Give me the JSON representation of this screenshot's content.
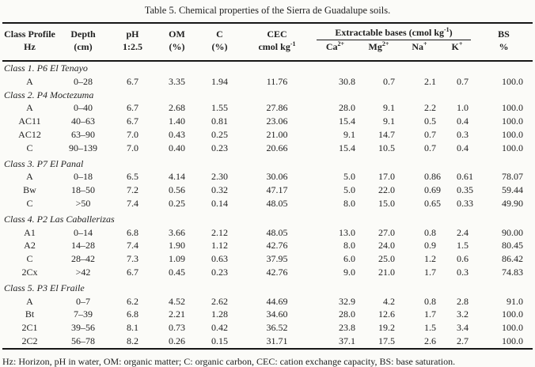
{
  "title": "Table 5. Chemical properties of the Sierra de Guadalupe soils.",
  "header": {
    "class_profile": {
      "l1": "Class Profile",
      "l2": "Hz"
    },
    "depth": {
      "l1": "Depth",
      "l2": "(cm)"
    },
    "ph": {
      "l1": "pH",
      "l2": "1:2.5"
    },
    "om": {
      "l1": "OM",
      "l2": "(%)"
    },
    "c": {
      "l1": "C",
      "l2": "(%)"
    },
    "cec": {
      "l1": "CEC",
      "unit_base": "cmol kg",
      "unit_sup": "-1"
    },
    "bases": {
      "label_pre": "Extractable bases (cmol kg",
      "label_sup": "-1",
      "label_post": ")"
    },
    "ions": [
      {
        "base": "Ca",
        "sup": "2+"
      },
      {
        "base": "Mg",
        "sup": "2+"
      },
      {
        "base": "Na",
        "sup": "+"
      },
      {
        "base": "K",
        "sup": "+"
      }
    ],
    "bs": {
      "l1": "BS",
      "l2": "%"
    }
  },
  "groups": [
    {
      "label": "Class 1. P6 El Tenayo",
      "rows": [
        [
          "A",
          "0–28",
          "6.7",
          "3.35",
          "1.94",
          "11.76",
          "30.8",
          "0.7",
          "2.1",
          "0.7",
          "100.0"
        ]
      ]
    },
    {
      "label": "Class 2. P4 Moctezuma",
      "rows": [
        [
          "A",
          "0–40",
          "6.7",
          "2.68",
          "1.55",
          "27.86",
          "28.0",
          "9.1",
          "2.2",
          "1.0",
          "100.0"
        ],
        [
          "AC11",
          "40–63",
          "6.7",
          "1.40",
          "0.81",
          "23.06",
          "15.4",
          "9.1",
          "0.5",
          "0.4",
          "100.0"
        ],
        [
          "AC12",
          "63–90",
          "7.0",
          "0.43",
          "0.25",
          "21.00",
          "9.1",
          "14.7",
          "0.7",
          "0.3",
          "100.0"
        ],
        [
          "C",
          "90–139",
          "7.0",
          "0.40",
          "0.23",
          "20.66",
          "15.4",
          "10.5",
          "0.7",
          "0.4",
          "100.0"
        ]
      ]
    },
    {
      "label": "Class 3. P7 El Panal",
      "rows": [
        [
          "A",
          "0–18",
          "6.5",
          "4.14",
          "2.30",
          "30.06",
          "5.0",
          "17.0",
          "0.86",
          "0.61",
          "78.07"
        ],
        [
          "Bw",
          "18–50",
          "7.2",
          "0.56",
          "0.32",
          "47.17",
          "5.0",
          "22.0",
          "0.69",
          "0.35",
          "59.44"
        ],
        [
          "C",
          ">50",
          "7.4",
          "0.25",
          "0.14",
          "48.05",
          "8.0",
          "15.0",
          "0.65",
          "0.33",
          "49.90"
        ]
      ]
    },
    {
      "label": "Class 4. P2 Las Caballerizas",
      "rows": [
        [
          "A1",
          "0–14",
          "6.8",
          "3.66",
          "2.12",
          "48.05",
          "13.0",
          "27.0",
          "0.8",
          "2.4",
          "90.00"
        ],
        [
          "A2",
          "14–28",
          "7.4",
          "1.90",
          "1.12",
          "42.76",
          "8.0",
          "24.0",
          "0.9",
          "1.5",
          "80.45"
        ],
        [
          "C",
          "28–42",
          "7.3",
          "1.09",
          "0.63",
          "37.95",
          "6.0",
          "25.0",
          "1.2",
          "0.6",
          "86.42"
        ],
        [
          "2Cx",
          ">42",
          "6.7",
          "0.45",
          "0.23",
          "42.76",
          "9.0",
          "21.0",
          "1.7",
          "0.3",
          "74.83"
        ]
      ]
    },
    {
      "label": "Class 5. P3 El Fraile",
      "rows": [
        [
          "A",
          "0–7",
          "6.2",
          "4.52",
          "2.62",
          "44.69",
          "32.9",
          "4.2",
          "0.8",
          "2.8",
          "91.0"
        ],
        [
          "Bt",
          "7–39",
          "6.8",
          "2.21",
          "1.28",
          "34.60",
          "28.0",
          "12.6",
          "1.7",
          "3.2",
          "100.0"
        ],
        [
          "2C1",
          "39–56",
          "8.1",
          "0.73",
          "0.42",
          "36.52",
          "23.8",
          "19.2",
          "1.5",
          "3.4",
          "100.0"
        ],
        [
          "2C2",
          "56–78",
          "8.2",
          "0.26",
          "0.15",
          "31.71",
          "37.1",
          "17.5",
          "2.6",
          "2.7",
          "100.0"
        ]
      ]
    }
  ],
  "footnote": "Hz: Horizon, pH in water, OM: organic matter; C: organic carbon, CEC: cation exchange capacity, BS: base saturation."
}
